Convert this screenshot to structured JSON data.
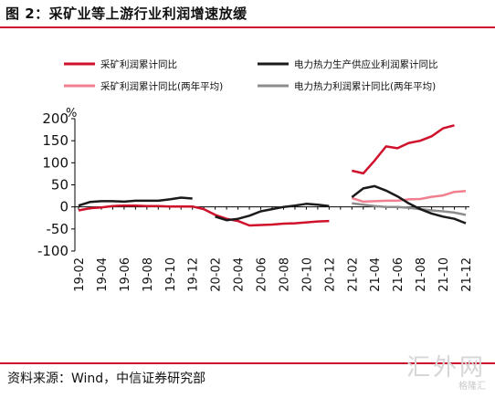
{
  "header": {
    "title": "图 2：采矿业等上游行业利润增速放缓"
  },
  "footer": {
    "source": "资料来源：Wind，中信证券研究部"
  },
  "watermark": {
    "main": "汇外网",
    "sub": "格隆汇"
  },
  "chart_data": {
    "type": "line",
    "x": [
      "19-02",
      "19-03",
      "19-04",
      "19-05",
      "19-06",
      "19-07",
      "19-08",
      "19-09",
      "19-10",
      "19-11",
      "19-12",
      "20-01",
      "20-02",
      "20-03",
      "20-04",
      "20-05",
      "20-06",
      "20-07",
      "20-08",
      "20-09",
      "20-10",
      "20-11",
      "20-12",
      "21-01",
      "21-02",
      "21-03",
      "21-04",
      "21-05",
      "21-06",
      "21-07",
      "21-08",
      "21-09",
      "21-10",
      "21-11",
      "21-12"
    ],
    "x_tick_labels": [
      "19-02",
      "19-04",
      "19-06",
      "19-08",
      "19-10",
      "19-12",
      "20-02",
      "20-04",
      "20-06",
      "20-08",
      "20-10",
      "20-12",
      "21-02",
      "21-04",
      "21-06",
      "21-08",
      "21-10",
      "21-12"
    ],
    "ylabel": "%",
    "ylim": [
      -100,
      200
    ],
    "yticks": [
      -100,
      -50,
      0,
      50,
      100,
      150,
      200
    ],
    "grid": false,
    "legend_position": "top",
    "series": [
      {
        "name": "采矿利润累计同比",
        "color": "#d0112b",
        "width": 2.5,
        "values": [
          -8,
          -3,
          -1,
          2,
          3,
          3,
          2,
          2,
          1,
          1,
          1,
          -5,
          -18,
          -27,
          -32,
          -42,
          -41,
          -40,
          -38,
          -37,
          -35,
          -33,
          -32,
          null,
          82,
          76,
          105,
          137,
          133,
          145,
          150,
          160,
          178,
          185,
          null
        ]
      },
      {
        "name": "电力热力生产供应业利润累计同比",
        "color": "#1a1a1a",
        "width": 2.5,
        "values": [
          3,
          11,
          13,
          13,
          12,
          14,
          14,
          14,
          17,
          21,
          19,
          null,
          -22,
          -30,
          -27,
          -20,
          -10,
          -5,
          0,
          3,
          7,
          5,
          2,
          null,
          22,
          42,
          47,
          37,
          24,
          8,
          -5,
          -15,
          -22,
          -27,
          -37
        ]
      },
      {
        "name": "采矿利润累计同比(两年平均)",
        "color": "#f08090",
        "width": 2.5,
        "values": [
          null,
          null,
          null,
          null,
          null,
          null,
          null,
          null,
          null,
          null,
          null,
          null,
          null,
          null,
          null,
          null,
          null,
          null,
          null,
          null,
          null,
          null,
          null,
          null,
          20,
          12,
          13,
          14,
          14,
          17,
          18,
          23,
          26,
          34,
          36
        ]
      },
      {
        "name": "电力热力利润累计同比(两年平均)",
        "color": "#8c8c8c",
        "width": 2.5,
        "values": [
          null,
          null,
          null,
          null,
          null,
          null,
          null,
          null,
          null,
          null,
          null,
          null,
          null,
          null,
          null,
          null,
          null,
          null,
          null,
          null,
          null,
          null,
          null,
          null,
          8,
          5,
          2,
          0,
          0,
          -2,
          -5,
          -8,
          -10,
          -13,
          -18
        ]
      }
    ]
  }
}
